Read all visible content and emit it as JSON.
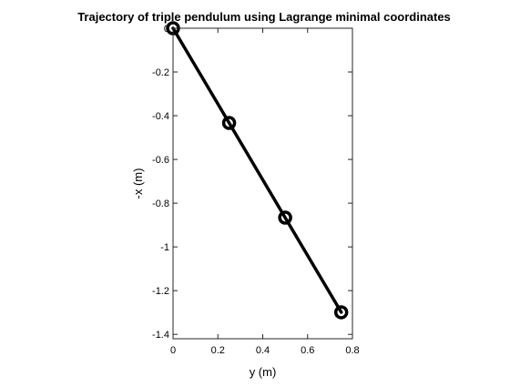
{
  "chart_data": {
    "type": "line",
    "title": "Trajectory of triple pendulum using Lagrange minimal coordinates",
    "xlabel": "y (m)",
    "ylabel": "-x (m)",
    "xlim": [
      0,
      0.8
    ],
    "ylim": [
      -1.42,
      0
    ],
    "xticks": [
      0,
      0.2,
      0.4,
      0.6,
      0.8
    ],
    "xtick_labels": [
      "0",
      "0.2",
      "0.4",
      "0.6",
      "0.8"
    ],
    "yticks": [
      0,
      -0.2,
      -0.4,
      -0.6,
      -0.8,
      -1,
      -1.2,
      -1.4
    ],
    "ytick_labels": [
      "0",
      "-0.2",
      "-0.4",
      "-0.6",
      "-0.8",
      "-1",
      "-1.2",
      "-1.4"
    ],
    "grid": false,
    "box": true,
    "series": [
      {
        "x": [
          0,
          0.25,
          0.5,
          0.75
        ],
        "y": [
          0,
          -0.433,
          -0.866,
          -1.299
        ],
        "color": "#000000",
        "marker": "circle"
      }
    ]
  }
}
